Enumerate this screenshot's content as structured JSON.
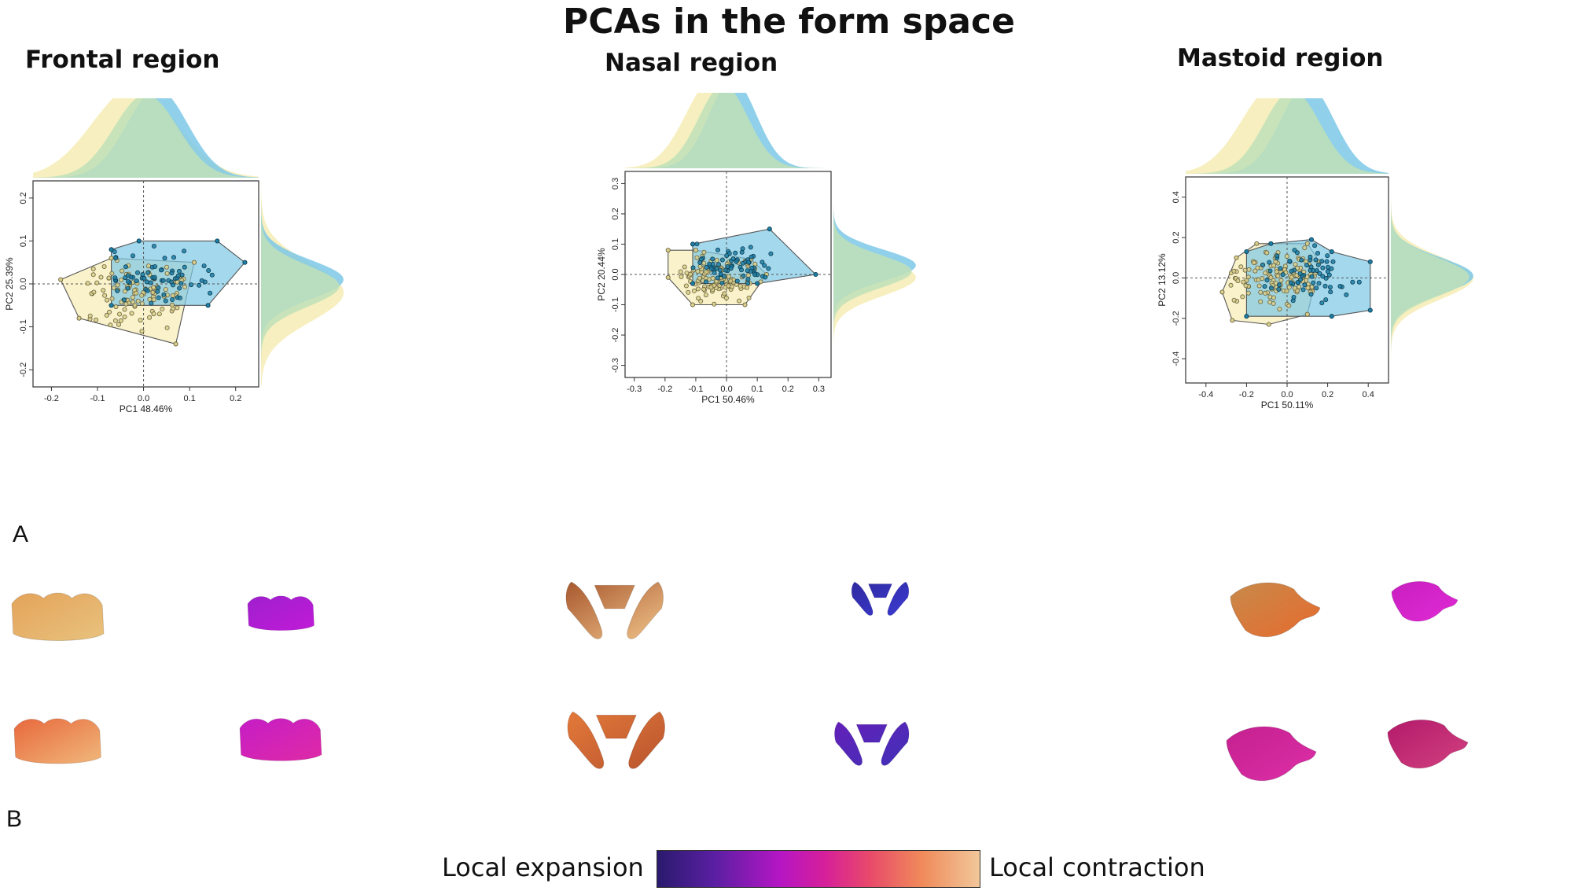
{
  "figure": {
    "title": "PCAs in the form space",
    "panel_a": "A",
    "panel_b": "B",
    "legend": {
      "left_label": "Local expansion",
      "right_label": "Local contraction",
      "colors": [
        "#2a1a6e",
        "#5b1fa3",
        "#b516c4",
        "#d61f9a",
        "#e84a6a",
        "#f08a5a",
        "#f1c79a"
      ]
    },
    "group_colors": {
      "group_yellow": "#f6ecb4",
      "group_blue": "#7dc8e6",
      "overlap_green": "#bfe0b9"
    }
  },
  "chart_data": [
    {
      "type": "scatter",
      "region_title": "Frontal region",
      "xlabel": "PC1 48.46%",
      "ylabel": "PC2 25.39%",
      "xlim": [
        -0.24,
        0.25
      ],
      "ylim": [
        -0.24,
        0.24
      ],
      "xticks": [
        -0.2,
        -0.1,
        0.0,
        0.1,
        0.2
      ],
      "yticks": [
        -0.2,
        -0.1,
        0.0,
        0.1,
        0.2
      ],
      "tick_labels_x": [
        "-0.2",
        "-0.1",
        "0.0",
        "0.1",
        "0.2"
      ],
      "tick_labels_y": [
        "-0.2",
        "-0.1",
        "0.0",
        "0.1",
        "0.2"
      ],
      "series": [
        {
          "color": "#f6ecb4",
          "hull": [
            [
              -0.18,
              0.01
            ],
            [
              -0.07,
              0.06
            ],
            [
              0.11,
              0.05
            ],
            [
              0.07,
              -0.14
            ],
            [
              -0.14,
              -0.08
            ]
          ],
          "center": [
            -0.02,
            -0.02
          ],
          "spread": [
            0.07,
            0.045
          ],
          "count": 110
        },
        {
          "color": "#7dc8e6",
          "hull": [
            [
              -0.07,
              0.08
            ],
            [
              -0.01,
              0.1
            ],
            [
              0.16,
              0.1
            ],
            [
              0.22,
              0.05
            ],
            [
              0.14,
              -0.05
            ],
            [
              -0.07,
              -0.05
            ]
          ],
          "center": [
            0.03,
            0.01
          ],
          "spread": [
            0.06,
            0.035
          ],
          "count": 70
        }
      ]
    },
    {
      "type": "scatter",
      "region_title": "Nasal region",
      "xlabel": "PC1 50.46%",
      "ylabel": "PC2 20.44%",
      "xlim": [
        -0.33,
        0.34
      ],
      "ylim": [
        -0.34,
        0.34
      ],
      "xticks": [
        -0.3,
        -0.2,
        -0.1,
        0.0,
        0.1,
        0.2,
        0.3
      ],
      "yticks": [
        -0.3,
        -0.2,
        -0.1,
        0.0,
        0.1,
        0.2,
        0.3
      ],
      "tick_labels_x": [
        "-0.3",
        "-0.2",
        "-0.1",
        "0.0",
        "0.1",
        "0.2",
        "0.3"
      ],
      "tick_labels_y": [
        "-0.3",
        "-0.2",
        "-0.1",
        "0.0",
        "0.1",
        "0.2",
        "0.3"
      ],
      "series": [
        {
          "color": "#f6ecb4",
          "hull": [
            [
              -0.19,
              0.08
            ],
            [
              -0.19,
              -0.01
            ],
            [
              -0.11,
              -0.1
            ],
            [
              0.06,
              -0.1
            ],
            [
              0.13,
              0.0
            ],
            [
              0.08,
              0.05
            ],
            [
              -0.1,
              0.08
            ]
          ],
          "center": [
            -0.04,
            -0.01
          ],
          "spread": [
            0.07,
            0.04
          ],
          "count": 110
        },
        {
          "color": "#7dc8e6",
          "hull": [
            [
              -0.11,
              0.1
            ],
            [
              0.14,
              0.15
            ],
            [
              0.29,
              0.0
            ],
            [
              0.1,
              -0.03
            ],
            [
              -0.11,
              -0.03
            ]
          ],
          "center": [
            0.02,
            0.03
          ],
          "spread": [
            0.07,
            0.04
          ],
          "count": 70
        }
      ]
    },
    {
      "type": "scatter",
      "region_title": "Mastoid region",
      "xlabel": "PC1 50.11%",
      "ylabel": "PC2 13.12%",
      "xlim": [
        -0.5,
        0.5
      ],
      "ylim": [
        -0.52,
        0.5
      ],
      "xticks": [
        -0.4,
        -0.2,
        0.0,
        0.2,
        0.4
      ],
      "yticks": [
        -0.4,
        -0.2,
        0.0,
        0.2,
        0.4
      ],
      "tick_labels_x": [
        "-0.4",
        "-0.2",
        "0.0",
        "0.2",
        "0.4"
      ],
      "tick_labels_y": [
        "-0.4",
        "-0.2",
        "0.0",
        "0.2",
        "0.4"
      ],
      "series": [
        {
          "color": "#f6ecb4",
          "hull": [
            [
              -0.32,
              -0.07
            ],
            [
              -0.25,
              0.1
            ],
            [
              -0.15,
              0.17
            ],
            [
              0.1,
              0.17
            ],
            [
              0.16,
              0.08
            ],
            [
              0.1,
              -0.18
            ],
            [
              -0.09,
              -0.23
            ],
            [
              -0.27,
              -0.21
            ]
          ],
          "center": [
            -0.05,
            0.0
          ],
          "spread": [
            0.13,
            0.07
          ],
          "count": 120
        },
        {
          "color": "#7dc8e6",
          "hull": [
            [
              -0.2,
              0.13
            ],
            [
              -0.08,
              0.17
            ],
            [
              0.12,
              0.19
            ],
            [
              0.22,
              0.13
            ],
            [
              0.41,
              0.08
            ],
            [
              0.41,
              -0.16
            ],
            [
              0.22,
              -0.19
            ],
            [
              -0.2,
              -0.19
            ]
          ],
          "center": [
            0.1,
            0.01
          ],
          "spread": [
            0.12,
            0.07
          ],
          "count": 70
        }
      ]
    }
  ],
  "shapes": [
    {
      "region": "frontal",
      "items": [
        {
          "colors": [
            "#e4a35a",
            "#e8c27e"
          ]
        },
        {
          "colors": [
            "#9f1fcf",
            "#c01bd6"
          ]
        },
        {
          "colors": [
            "#e8683c",
            "#f0b87b"
          ]
        },
        {
          "colors": [
            "#c51dc6",
            "#df2aa6"
          ]
        }
      ]
    },
    {
      "region": "nasal",
      "items": [
        {
          "colors": [
            "#a8582e",
            "#f0c38a"
          ]
        },
        {
          "colors": [
            "#2f2aa0",
            "#3b3ad0"
          ]
        },
        {
          "colors": [
            "#e3793a",
            "#b9552e"
          ]
        },
        {
          "colors": [
            "#6320b8",
            "#4230b8"
          ]
        }
      ]
    },
    {
      "region": "mastoid",
      "items": [
        {
          "colors": [
            "#c78a4a",
            "#e76a2e"
          ]
        },
        {
          "colors": [
            "#c81fbf",
            "#e02ad6"
          ]
        },
        {
          "colors": [
            "#c4208f",
            "#dd2fa8"
          ]
        },
        {
          "colors": [
            "#b31a6b",
            "#d2417f"
          ]
        }
      ]
    }
  ]
}
